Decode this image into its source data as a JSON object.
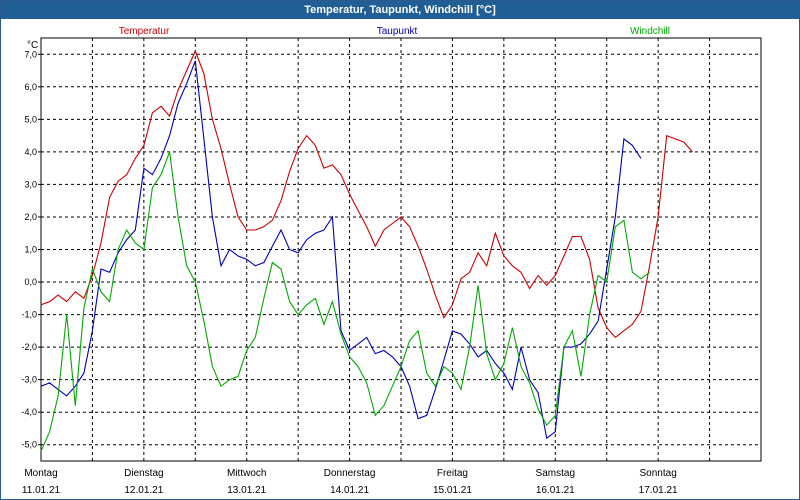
{
  "window": {
    "title": "Temperatur, Taupunkt, Windchill [°C]"
  },
  "chart_data": {
    "type": "line",
    "title": "Temperatur, Taupunkt, Windchill [°C]",
    "ylabel": "°C",
    "ylim": [
      -5.5,
      7.5
    ],
    "yticks": [
      7,
      6,
      5,
      4,
      3,
      2,
      1,
      0,
      -1,
      -2,
      -3,
      -4,
      -5
    ],
    "ytick_labels": [
      "7,0",
      "6,0",
      "5,0",
      "4,0",
      "3,0",
      "2,0",
      "1,0",
      "0,0",
      "-1,0",
      "-2,0",
      "-3,0",
      "-4,0",
      "-5,0"
    ],
    "xlim": [
      0,
      168
    ],
    "xticks": [
      {
        "day": "Montag",
        "date": "11.01.21"
      },
      {
        "day": "Dienstag",
        "date": "12.01.21"
      },
      {
        "day": "Mittwoch",
        "date": "13.01.21"
      },
      {
        "day": "Donnerstag",
        "date": "14.01.21"
      },
      {
        "day": "Freitag",
        "date": "15.01.21"
      },
      {
        "day": "Samstag",
        "date": "16.01.21"
      },
      {
        "day": "Sonntag",
        "date": "17.01.21"
      }
    ],
    "grid": true,
    "series": [
      {
        "name": "Temperatur",
        "color": "#cc0000",
        "points": [
          [
            0,
            -0.7
          ],
          [
            2,
            -0.6
          ],
          [
            4,
            -0.4
          ],
          [
            6,
            -0.6
          ],
          [
            8,
            -0.3
          ],
          [
            10,
            -0.5
          ],
          [
            12,
            0.2
          ],
          [
            14,
            1.2
          ],
          [
            16,
            2.6
          ],
          [
            18,
            3.1
          ],
          [
            20,
            3.3
          ],
          [
            22,
            3.8
          ],
          [
            24,
            4.2
          ],
          [
            26,
            5.2
          ],
          [
            28,
            5.4
          ],
          [
            30,
            5.1
          ],
          [
            32,
            5.9
          ],
          [
            34,
            6.5
          ],
          [
            36,
            7.1
          ],
          [
            38,
            6.4
          ],
          [
            40,
            5.0
          ],
          [
            42,
            4.1
          ],
          [
            44,
            3.0
          ],
          [
            46,
            2.0
          ],
          [
            48,
            1.6
          ],
          [
            50,
            1.6
          ],
          [
            52,
            1.7
          ],
          [
            54,
            1.9
          ],
          [
            56,
            2.5
          ],
          [
            58,
            3.4
          ],
          [
            60,
            4.1
          ],
          [
            62,
            4.5
          ],
          [
            64,
            4.2
          ],
          [
            66,
            3.5
          ],
          [
            68,
            3.6
          ],
          [
            70,
            3.3
          ],
          [
            72,
            2.7
          ],
          [
            74,
            2.2
          ],
          [
            76,
            1.7
          ],
          [
            78,
            1.1
          ],
          [
            80,
            1.6
          ],
          [
            82,
            1.8
          ],
          [
            84,
            2.0
          ],
          [
            86,
            1.7
          ],
          [
            88,
            1.1
          ],
          [
            90,
            0.4
          ],
          [
            92,
            -0.4
          ],
          [
            94,
            -1.1
          ],
          [
            96,
            -0.7
          ],
          [
            98,
            0.1
          ],
          [
            100,
            0.3
          ],
          [
            102,
            0.9
          ],
          [
            104,
            0.5
          ],
          [
            106,
            1.5
          ],
          [
            108,
            0.8
          ],
          [
            110,
            0.5
          ],
          [
            112,
            0.3
          ],
          [
            114,
            -0.2
          ],
          [
            116,
            0.2
          ],
          [
            118,
            -0.1
          ],
          [
            120,
            0.2
          ],
          [
            122,
            0.8
          ],
          [
            124,
            1.4
          ],
          [
            126,
            1.4
          ],
          [
            128,
            0.7
          ],
          [
            130,
            -0.8
          ],
          [
            132,
            -1.4
          ],
          [
            134,
            -1.7
          ],
          [
            136,
            -1.5
          ],
          [
            138,
            -1.3
          ],
          [
            140,
            -0.9
          ],
          [
            142,
            0.5
          ],
          [
            144,
            2.0
          ],
          [
            146,
            4.5
          ],
          [
            148,
            4.4
          ],
          [
            150,
            4.3
          ],
          [
            152,
            4.0
          ]
        ]
      },
      {
        "name": "Taupunkt",
        "color": "#0000bb",
        "points": [
          [
            0,
            -3.2
          ],
          [
            2,
            -3.1
          ],
          [
            4,
            -3.3
          ],
          [
            6,
            -3.5
          ],
          [
            8,
            -3.2
          ],
          [
            10,
            -2.8
          ],
          [
            12,
            -1.5
          ],
          [
            14,
            0.4
          ],
          [
            16,
            0.3
          ],
          [
            18,
            0.9
          ],
          [
            20,
            1.3
          ],
          [
            22,
            1.6
          ],
          [
            24,
            3.5
          ],
          [
            26,
            3.3
          ],
          [
            28,
            3.8
          ],
          [
            30,
            4.5
          ],
          [
            32,
            5.5
          ],
          [
            34,
            6.1
          ],
          [
            36,
            6.8
          ],
          [
            38,
            4.4
          ],
          [
            40,
            2.0
          ],
          [
            42,
            0.5
          ],
          [
            44,
            1.0
          ],
          [
            46,
            0.8
          ],
          [
            48,
            0.7
          ],
          [
            50,
            0.5
          ],
          [
            52,
            0.6
          ],
          [
            54,
            1.1
          ],
          [
            56,
            1.6
          ],
          [
            58,
            1.0
          ],
          [
            60,
            0.9
          ],
          [
            62,
            1.3
          ],
          [
            64,
            1.5
          ],
          [
            66,
            1.6
          ],
          [
            68,
            2.0
          ],
          [
            70,
            -1.5
          ],
          [
            72,
            -2.1
          ],
          [
            74,
            -1.9
          ],
          [
            76,
            -1.7
          ],
          [
            78,
            -2.2
          ],
          [
            80,
            -2.1
          ],
          [
            82,
            -2.3
          ],
          [
            84,
            -2.6
          ],
          [
            86,
            -3.2
          ],
          [
            88,
            -4.2
          ],
          [
            90,
            -4.1
          ],
          [
            92,
            -3.3
          ],
          [
            94,
            -2.4
          ],
          [
            96,
            -1.5
          ],
          [
            98,
            -1.6
          ],
          [
            100,
            -1.9
          ],
          [
            102,
            -2.3
          ],
          [
            104,
            -2.1
          ],
          [
            106,
            -2.5
          ],
          [
            108,
            -2.8
          ],
          [
            110,
            -3.3
          ],
          [
            112,
            -2.0
          ],
          [
            114,
            -3.0
          ],
          [
            116,
            -3.4
          ],
          [
            118,
            -4.8
          ],
          [
            120,
            -4.6
          ],
          [
            122,
            -2.0
          ],
          [
            124,
            -2.0
          ],
          [
            126,
            -1.9
          ],
          [
            128,
            -1.6
          ],
          [
            130,
            -1.2
          ],
          [
            132,
            0.4
          ],
          [
            134,
            2.0
          ],
          [
            136,
            4.4
          ],
          [
            138,
            4.2
          ],
          [
            140,
            3.8
          ]
        ]
      },
      {
        "name": "Windchill",
        "color": "#00aa00",
        "points": [
          [
            0,
            -5.2
          ],
          [
            2,
            -4.6
          ],
          [
            4,
            -3.5
          ],
          [
            6,
            -1.0
          ],
          [
            8,
            -3.8
          ],
          [
            10,
            -0.8
          ],
          [
            12,
            0.4
          ],
          [
            14,
            -0.3
          ],
          [
            16,
            -0.6
          ],
          [
            18,
            1.0
          ],
          [
            20,
            1.6
          ],
          [
            22,
            1.2
          ],
          [
            24,
            1.0
          ],
          [
            26,
            2.9
          ],
          [
            28,
            3.3
          ],
          [
            30,
            4.0
          ],
          [
            32,
            2.0
          ],
          [
            34,
            0.5
          ],
          [
            36,
            0.0
          ],
          [
            38,
            -1.2
          ],
          [
            40,
            -2.6
          ],
          [
            42,
            -3.2
          ],
          [
            44,
            -3.0
          ],
          [
            46,
            -2.9
          ],
          [
            48,
            -2.1
          ],
          [
            50,
            -1.7
          ],
          [
            52,
            -0.5
          ],
          [
            54,
            0.6
          ],
          [
            56,
            0.4
          ],
          [
            58,
            -0.6
          ],
          [
            60,
            -1.0
          ],
          [
            62,
            -0.7
          ],
          [
            64,
            -0.5
          ],
          [
            66,
            -1.3
          ],
          [
            68,
            -0.6
          ],
          [
            70,
            -1.6
          ],
          [
            72,
            -2.3
          ],
          [
            74,
            -2.6
          ],
          [
            76,
            -3.1
          ],
          [
            78,
            -4.1
          ],
          [
            80,
            -3.8
          ],
          [
            82,
            -3.2
          ],
          [
            84,
            -2.6
          ],
          [
            86,
            -1.8
          ],
          [
            88,
            -1.5
          ],
          [
            90,
            -2.8
          ],
          [
            92,
            -3.2
          ],
          [
            94,
            -2.6
          ],
          [
            96,
            -2.8
          ],
          [
            98,
            -3.3
          ],
          [
            100,
            -2.0
          ],
          [
            102,
            -0.1
          ],
          [
            104,
            -2.2
          ],
          [
            106,
            -3.0
          ],
          [
            108,
            -2.5
          ],
          [
            110,
            -1.4
          ],
          [
            112,
            -2.6
          ],
          [
            114,
            -3.1
          ],
          [
            116,
            -3.9
          ],
          [
            118,
            -4.4
          ],
          [
            120,
            -4.1
          ],
          [
            122,
            -2.0
          ],
          [
            124,
            -1.5
          ],
          [
            126,
            -2.9
          ],
          [
            128,
            -1.0
          ],
          [
            130,
            0.2
          ],
          [
            132,
            0.0
          ],
          [
            134,
            1.7
          ],
          [
            136,
            1.9
          ],
          [
            138,
            0.3
          ],
          [
            140,
            0.1
          ],
          [
            142,
            0.3
          ]
        ]
      }
    ]
  }
}
